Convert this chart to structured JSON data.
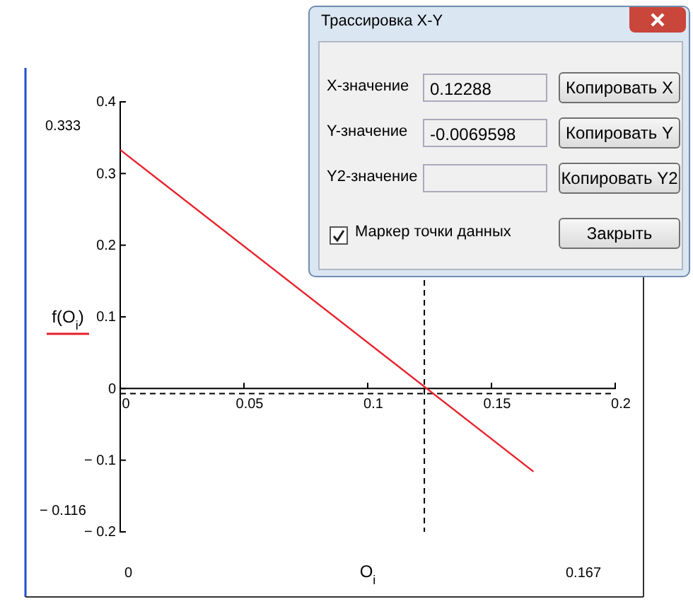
{
  "chart_data": {
    "type": "line",
    "xlabel": "O$_{i}$",
    "ylabel": "f(O$_{i}$)",
    "x": [
      0,
      0.167
    ],
    "series": [
      {
        "color": "#e8202a",
        "values": [
          0.333,
          -0.116
        ]
      }
    ],
    "xlim": [
      0,
      0.2
    ],
    "xticks": [
      0,
      0.05,
      0.1,
      0.15,
      0.2
    ],
    "ylim": [
      -0.2,
      0.4
    ],
    "yticks": [
      {
        "value": -0.2,
        "label": "− 0.2"
      },
      {
        "value": -0.1,
        "label": "− 0.1"
      },
      0,
      0.1,
      0.2,
      0.3,
      0.4
    ],
    "grid": false,
    "marker": "none",
    "line_style": "solid",
    "ref_lines": [
      {
        "axis": "x",
        "value": 0.12288,
        "line_style": "dashed",
        "color": "#000000"
      },
      {
        "axis": "y",
        "value": -0.0069598,
        "line_style": "dashed",
        "color": "#000000"
      }
    ],
    "annotations": [
      "0.333",
      "− 0.116",
      "0",
      "0.167",
      "Трассировка X-Y",
      "X-значение",
      "0.12288",
      "Y-значение",
      "-0.0069598",
      "Y2-значение",
      "Копировать X",
      "Копировать Y",
      "Копировать Y2",
      "Маркер точки данных",
      "Закрыть"
    ]
  }
}
